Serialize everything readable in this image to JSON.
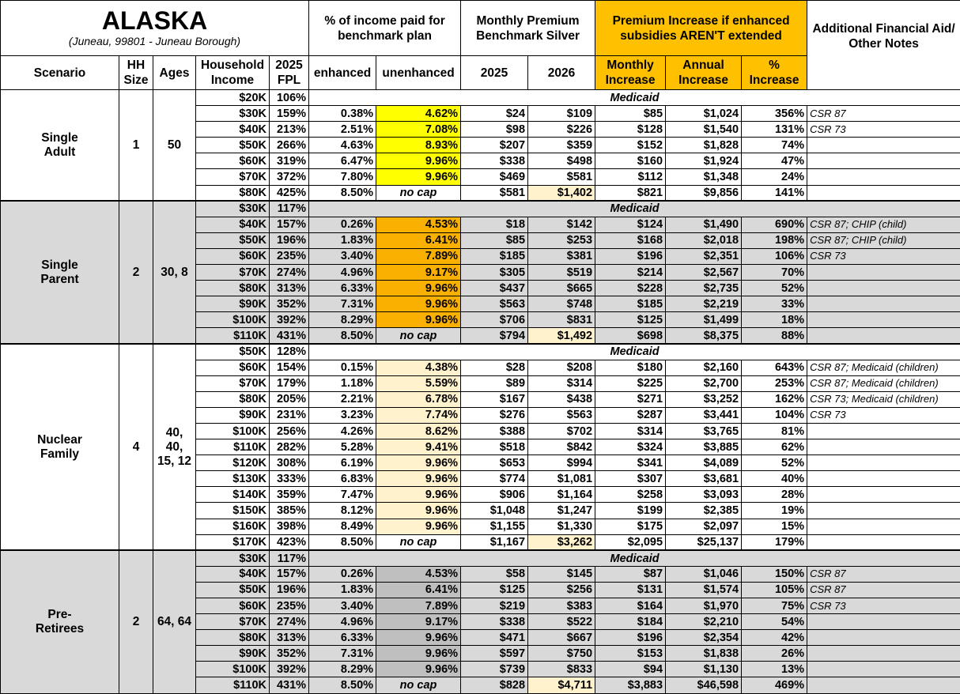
{
  "header": {
    "title": "ALASKA",
    "subtitle": "(Juneau, 99801 - Juneau Borough)",
    "pct_income": "% of income paid for benchmark plan",
    "monthly_premium": "Monthly Premium Benchmark Silver",
    "premium_increase": "Premium Increase if enhanced subsidies AREN'T extended",
    "notes": "Additional Financial Aid/ Other Notes",
    "columns": [
      "Scenario",
      "HH Size",
      "Ages",
      "Household Income",
      "2025 FPL",
      "enhanced",
      "unenhanced",
      "2025",
      "2026",
      "Monthly Increase",
      "Annual Increase",
      "% Increase"
    ]
  },
  "groups": [
    {
      "scenario": "Single Adult",
      "hh_size": "1",
      "ages": "50",
      "rows": [
        [
          "$20K",
          "106%",
          "Medicaid"
        ],
        [
          "$30K",
          "159%",
          "0.38%",
          "4.62%",
          "$24",
          "$109",
          "$85",
          "$1,024",
          "356%",
          "CSR 87"
        ],
        [
          "$40K",
          "213%",
          "2.51%",
          "7.08%",
          "$98",
          "$226",
          "$128",
          "$1,540",
          "131%",
          "CSR 73"
        ],
        [
          "$50K",
          "266%",
          "4.63%",
          "8.93%",
          "$207",
          "$359",
          "$152",
          "$1,828",
          "74%"
        ],
        [
          "$60K",
          "319%",
          "6.47%",
          "9.96%",
          "$338",
          "$498",
          "$160",
          "$1,924",
          "47%"
        ],
        [
          "$70K",
          "372%",
          "7.80%",
          "9.96%",
          "$469",
          "$581",
          "$112",
          "$1,348",
          "24%"
        ],
        [
          "$80K",
          "425%",
          "8.50%",
          "no cap",
          "$581",
          "$1,402",
          "$821",
          "$9,856",
          "141%"
        ]
      ]
    },
    {
      "scenario": "Single Parent",
      "hh_size": "2",
      "ages": "30, 8",
      "rows": [
        [
          "$30K",
          "117%",
          "Medicaid"
        ],
        [
          "$40K",
          "157%",
          "0.26%",
          "4.53%",
          "$18",
          "$142",
          "$124",
          "$1,490",
          "690%",
          "CSR 87; CHIP (child)"
        ],
        [
          "$50K",
          "196%",
          "1.83%",
          "6.41%",
          "$85",
          "$253",
          "$168",
          "$2,018",
          "198%",
          "CSR 87; CHIP (child)"
        ],
        [
          "$60K",
          "235%",
          "3.40%",
          "7.89%",
          "$185",
          "$381",
          "$196",
          "$2,351",
          "106%",
          "CSR 73"
        ],
        [
          "$70K",
          "274%",
          "4.96%",
          "9.17%",
          "$305",
          "$519",
          "$214",
          "$2,567",
          "70%"
        ],
        [
          "$80K",
          "313%",
          "6.33%",
          "9.96%",
          "$437",
          "$665",
          "$228",
          "$2,735",
          "52%"
        ],
        [
          "$90K",
          "352%",
          "7.31%",
          "9.96%",
          "$563",
          "$748",
          "$185",
          "$2,219",
          "33%"
        ],
        [
          "$100K",
          "392%",
          "8.29%",
          "9.96%",
          "$706",
          "$831",
          "$125",
          "$1,499",
          "18%"
        ],
        [
          "$110K",
          "431%",
          "8.50%",
          "no cap",
          "$794",
          "$1,492",
          "$698",
          "$8,375",
          "88%"
        ]
      ]
    },
    {
      "scenario": "Nuclear Family",
      "hh_size": "4",
      "ages": "40, 40, 15, 12",
      "rows": [
        [
          "$50K",
          "128%",
          "Medicaid"
        ],
        [
          "$60K",
          "154%",
          "0.15%",
          "4.38%",
          "$28",
          "$208",
          "$180",
          "$2,160",
          "643%",
          "CSR 87; Medicaid (children)"
        ],
        [
          "$70K",
          "179%",
          "1.18%",
          "5.59%",
          "$89",
          "$314",
          "$225",
          "$2,700",
          "253%",
          "CSR 87; Medicaid (children)"
        ],
        [
          "$80K",
          "205%",
          "2.21%",
          "6.78%",
          "$167",
          "$438",
          "$271",
          "$3,252",
          "162%",
          "CSR 73; Medicaid (children)"
        ],
        [
          "$90K",
          "231%",
          "3.23%",
          "7.74%",
          "$276",
          "$563",
          "$287",
          "$3,441",
          "104%",
          "CSR 73"
        ],
        [
          "$100K",
          "256%",
          "4.26%",
          "8.62%",
          "$388",
          "$702",
          "$314",
          "$3,765",
          "81%"
        ],
        [
          "$110K",
          "282%",
          "5.28%",
          "9.41%",
          "$518",
          "$842",
          "$324",
          "$3,885",
          "62%"
        ],
        [
          "$120K",
          "308%",
          "6.19%",
          "9.96%",
          "$653",
          "$994",
          "$341",
          "$4,089",
          "52%"
        ],
        [
          "$130K",
          "333%",
          "6.83%",
          "9.96%",
          "$774",
          "$1,081",
          "$307",
          "$3,681",
          "40%"
        ],
        [
          "$140K",
          "359%",
          "7.47%",
          "9.96%",
          "$906",
          "$1,164",
          "$258",
          "$3,093",
          "28%"
        ],
        [
          "$150K",
          "385%",
          "8.12%",
          "9.96%",
          "$1,048",
          "$1,247",
          "$199",
          "$2,385",
          "19%"
        ],
        [
          "$160K",
          "398%",
          "8.49%",
          "9.96%",
          "$1,155",
          "$1,330",
          "$175",
          "$2,097",
          "15%"
        ],
        [
          "$170K",
          "423%",
          "8.50%",
          "no cap",
          "$1,167",
          "$3,262",
          "$2,095",
          "$25,137",
          "179%"
        ]
      ]
    },
    {
      "scenario": "Pre-Retirees",
      "hh_size": "2",
      "ages": "64, 64",
      "rows": [
        [
          "$30K",
          "117%",
          "Medicaid"
        ],
        [
          "$40K",
          "157%",
          "0.26%",
          "4.53%",
          "$58",
          "$145",
          "$87",
          "$1,046",
          "150%",
          "CSR 87"
        ],
        [
          "$50K",
          "196%",
          "1.83%",
          "6.41%",
          "$125",
          "$256",
          "$131",
          "$1,574",
          "105%",
          "CSR 87"
        ],
        [
          "$60K",
          "235%",
          "3.40%",
          "7.89%",
          "$219",
          "$383",
          "$164",
          "$1,970",
          "75%",
          "CSR 73"
        ],
        [
          "$70K",
          "274%",
          "4.96%",
          "9.17%",
          "$338",
          "$522",
          "$184",
          "$2,210",
          "54%"
        ],
        [
          "$80K",
          "313%",
          "6.33%",
          "9.96%",
          "$471",
          "$667",
          "$196",
          "$2,354",
          "42%"
        ],
        [
          "$90K",
          "352%",
          "7.31%",
          "9.96%",
          "$597",
          "$750",
          "$153",
          "$1,838",
          "26%"
        ],
        [
          "$100K",
          "392%",
          "8.29%",
          "9.96%",
          "$739",
          "$833",
          "$94",
          "$1,130",
          "13%"
        ],
        [
          "$110K",
          "431%",
          "8.50%",
          "no cap",
          "$828",
          "$4,711",
          "$3,883",
          "$46,598",
          "469%"
        ]
      ]
    }
  ]
}
